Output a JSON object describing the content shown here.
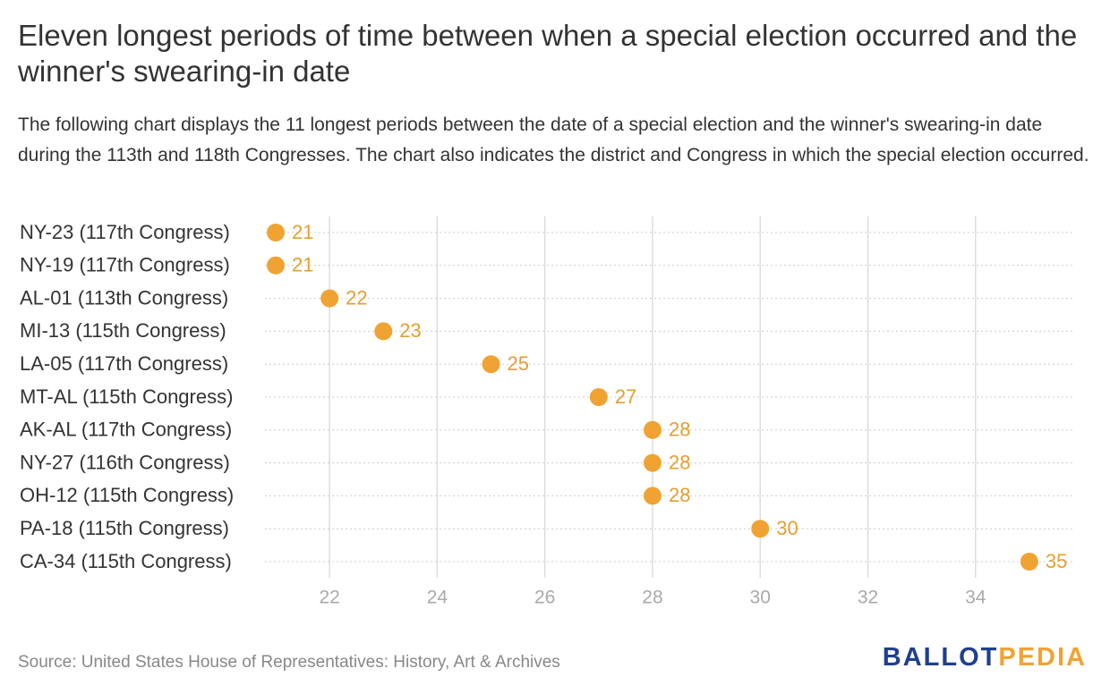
{
  "chart_data": {
    "type": "dot",
    "title": "Eleven longest periods of time between when a special election occurred and the winner's swearing-in date",
    "subtitle": "The following chart displays the 11 longest periods between the date of a special election and the winner's swearing-in date during the 113th and 118th Congresses. The chart also indicates the district and Congress in which the special election occurred.",
    "categories": [
      "NY-23 (117th Congress)",
      "NY-19 (117th Congress)",
      "AL-01 (113th Congress)",
      "MI-13 (115th Congress)",
      "LA-05 (117th Congress)",
      "MT-AL (115th Congress)",
      "AK-AL (117th Congress)",
      "NY-27 (116th Congress)",
      "OH-12 (115th Congress)",
      "PA-18 (115th Congress)",
      "CA-34 (115th Congress)"
    ],
    "values": [
      21,
      21,
      22,
      23,
      25,
      27,
      28,
      28,
      28,
      30,
      35
    ],
    "color": "#f0a332",
    "xlim": [
      20.8,
      35.8
    ],
    "xticks": [
      22,
      24,
      26,
      28,
      30,
      32,
      34
    ],
    "grid": true,
    "source": "Source: United States House of Representatives: History, Art & Archives",
    "logo": [
      "BALLOT",
      "PEDIA"
    ]
  }
}
